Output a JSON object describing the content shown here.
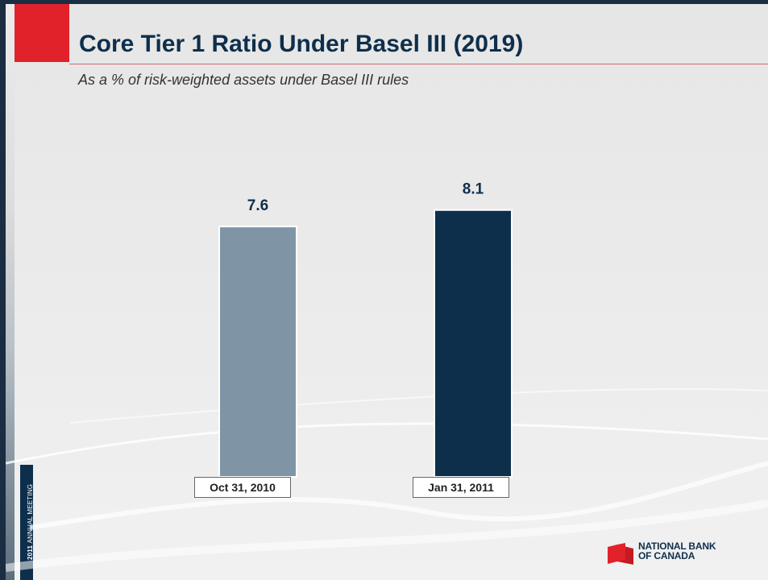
{
  "slide": {
    "title": "Core Tier 1 Ratio Under Basel III (2019)",
    "subtitle": "As a % of risk-weighted assets under Basel III rules",
    "side_label_bold": "2011",
    "side_label_light": "ANNUAL MEETING",
    "brand_line1": "NATIONAL BANK",
    "brand_line2": "OF CANADA",
    "brand_color": "#e2222b"
  },
  "chart_data": {
    "type": "bar",
    "categories": [
      "Oct 31, 2010",
      "Jan 31, 2011"
    ],
    "values": [
      7.6,
      8.1
    ],
    "value_labels": [
      "7.6",
      "8.1"
    ],
    "colors": [
      "#7f95a6",
      "#0e2f4c"
    ],
    "title": "Core Tier 1 Ratio Under Basel III (2019)",
    "subtitle": "As a % of risk-weighted assets under Basel III rules",
    "xlabel": "",
    "ylabel": "",
    "grid": false
  }
}
